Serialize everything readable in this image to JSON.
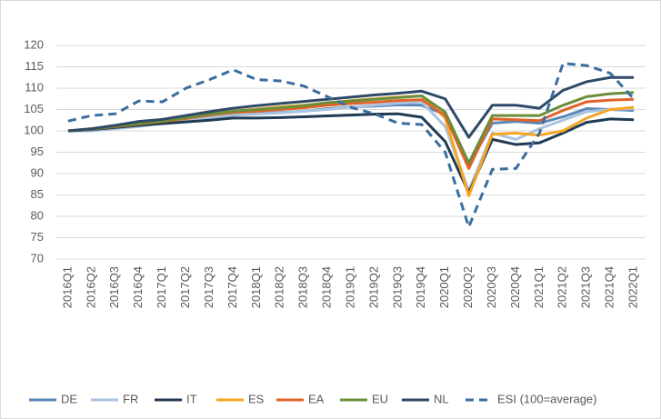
{
  "chart_data": {
    "type": "line",
    "categories": [
      "2016Q1",
      "2016Q2",
      "2016Q3",
      "2016Q4",
      "2017Q1",
      "2017Q2",
      "2017Q3",
      "2017Q4",
      "2018Q1",
      "2018Q2",
      "2018Q3",
      "2018Q4",
      "2019Q1",
      "2019Q2",
      "2019Q3",
      "2019Q4",
      "2020Q1",
      "2020Q2",
      "2020Q3",
      "2020Q4",
      "2021Q1",
      "2021Q2",
      "2021Q3",
      "2021Q4",
      "2022Q1"
    ],
    "ylim": [
      70,
      120
    ],
    "yticks": [
      70,
      75,
      80,
      85,
      90,
      95,
      100,
      105,
      110,
      115,
      120
    ],
    "grid": true,
    "legend": "bottom",
    "series": [
      {
        "name": "DE",
        "color": "#5b87b5",
        "values": [
          100,
          100.5,
          100.8,
          101.2,
          101.8,
          102.5,
          103.2,
          103.7,
          104,
          104.3,
          104.6,
          105.2,
          105.6,
          105.8,
          106.1,
          106,
          103.8,
          92,
          101.8,
          102.2,
          101.8,
          103.3,
          105.2,
          105,
          104.8
        ]
      },
      {
        "name": "FR",
        "color": "#a9c4e0",
        "values": [
          100,
          100,
          100.5,
          101,
          101.8,
          102.5,
          103.2,
          103.8,
          103.9,
          104.2,
          104.6,
          105,
          105.6,
          106,
          106.5,
          106.8,
          101,
          86,
          99.5,
          98,
          100.5,
          102.5,
          104.5,
          105,
          105.2
        ]
      },
      {
        "name": "IT",
        "color": "#1f3a52",
        "values": [
          100,
          100.3,
          100.8,
          101.3,
          101.7,
          102.1,
          102.5,
          103,
          103,
          103.1,
          103.3,
          103.5,
          103.7,
          103.9,
          104,
          103.2,
          97.5,
          85.5,
          98,
          96.8,
          97.2,
          99.5,
          102,
          102.8,
          102.6
        ]
      },
      {
        "name": "ES",
        "color": "#f5a623",
        "values": [
          100,
          100.5,
          101.2,
          101.8,
          102.5,
          103.2,
          104,
          104.6,
          105.1,
          105.6,
          106,
          106.5,
          107.1,
          107.5,
          107.9,
          108.2,
          103,
          84.8,
          99.2,
          99.5,
          99,
          100,
          103,
          105,
          105.5
        ]
      },
      {
        "name": "EA",
        "color": "#e0632a",
        "values": [
          100,
          100.4,
          101,
          101.6,
          102.2,
          102.9,
          103.7,
          104.3,
          104.6,
          105,
          105.4,
          106,
          106.4,
          106.7,
          107.1,
          107.3,
          103.6,
          91.2,
          102.8,
          102.6,
          102.4,
          104.8,
          106.8,
          107.2,
          107.4
        ]
      },
      {
        "name": "EU",
        "color": "#6b8e3a",
        "values": [
          100,
          100.4,
          101.1,
          101.7,
          102.3,
          103.1,
          103.9,
          104.6,
          105,
          105.4,
          105.9,
          106.6,
          107,
          107.4,
          107.8,
          108.2,
          104.4,
          92.5,
          103.6,
          103.6,
          103.6,
          106,
          108,
          108.7,
          109
        ]
      },
      {
        "name": "NL",
        "color": "#2e4a68",
        "values": [
          100,
          100.5,
          101.3,
          102.2,
          102.7,
          103.6,
          104.5,
          105.3,
          105.9,
          106.4,
          106.9,
          107.4,
          107.9,
          108.4,
          108.8,
          109.3,
          107.5,
          98.5,
          106,
          106,
          105.3,
          109.5,
          111.5,
          112.5,
          112.5
        ]
      },
      {
        "name": "ESI (100=average)",
        "color": "#3a6da0",
        "line_style": "dashed",
        "values": [
          102.3,
          103.6,
          104,
          107,
          106.8,
          110,
          112,
          114.3,
          112,
          111.7,
          110.5,
          108,
          105.5,
          104,
          101.8,
          101.5,
          95,
          77.5,
          91,
          91.2,
          99.5,
          115.8,
          115.3,
          113.5,
          107.5
        ]
      }
    ]
  }
}
